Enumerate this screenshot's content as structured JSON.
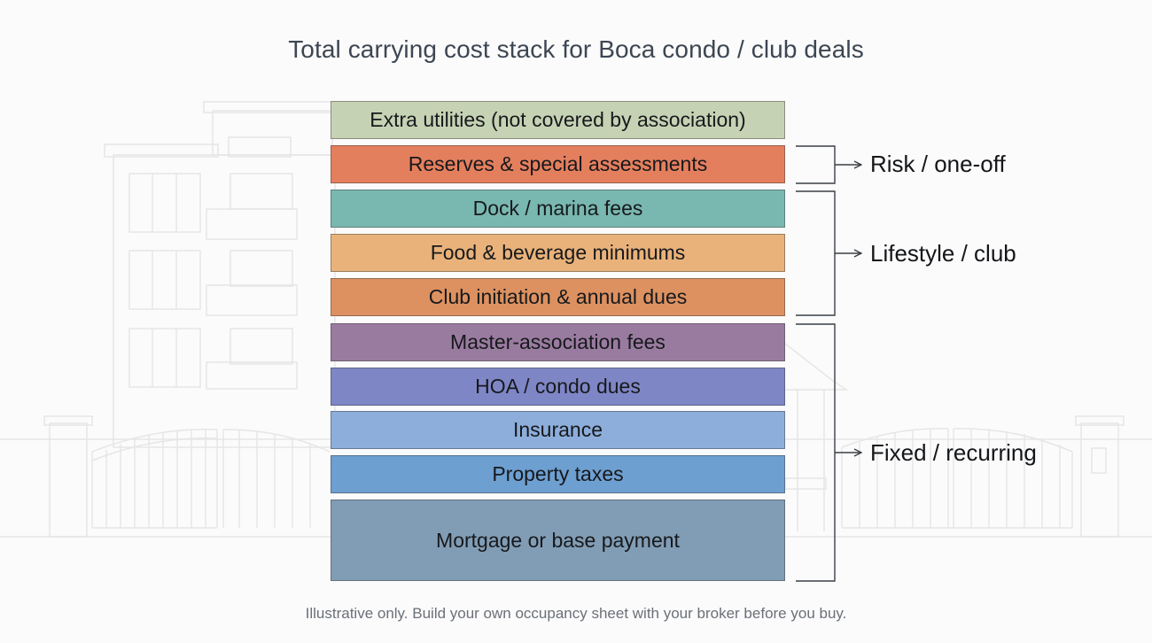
{
  "title": "Total carrying cost stack for Boca condo / club deals",
  "layers": [
    {
      "label": "Extra utilities (not covered by association)",
      "color": "#c6d2b4"
    },
    {
      "label": "Reserves & special assessments",
      "color": "#e47f5e"
    },
    {
      "label": "Dock / marina fees",
      "color": "#79b8b1"
    },
    {
      "label": "Food & beverage minimums",
      "color": "#e9b27a"
    },
    {
      "label": "Club initiation & annual dues",
      "color": "#dd9160"
    },
    {
      "label": "Master-association fees",
      "color": "#9a7ba0"
    },
    {
      "label": "HOA / condo dues",
      "color": "#7f86c6"
    },
    {
      "label": "Insurance",
      "color": "#8daedb"
    },
    {
      "label": "Property taxes",
      "color": "#6e9fd1"
    },
    {
      "label": "Mortgage or base payment",
      "color": "#819db5"
    }
  ],
  "groups": [
    {
      "label": "Risk / one-off"
    },
    {
      "label": "Lifestyle / club"
    },
    {
      "label": "Fixed / recurring"
    }
  ],
  "footnote": "Illustrative only. Build your own occupancy sheet with your broker before you buy."
}
